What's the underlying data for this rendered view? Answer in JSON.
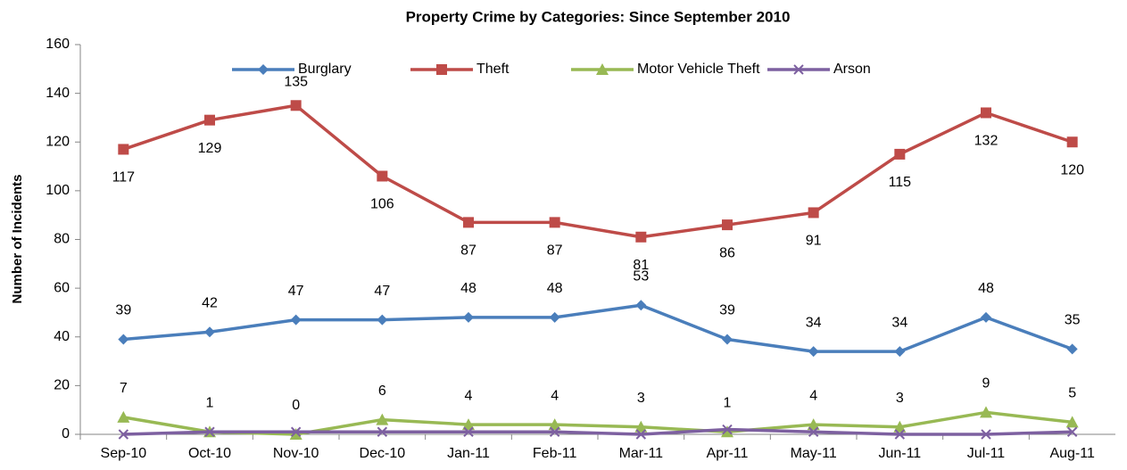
{
  "chart_data": {
    "type": "line",
    "title": "Property Crime by Categories: Since September 2010",
    "ylabel": "Number of Incidents",
    "categories": [
      "Sep-10",
      "Oct-10",
      "Nov-10",
      "Dec-10",
      "Jan-11",
      "Feb-11",
      "Mar-11",
      "Apr-11",
      "May-11",
      "Jun-11",
      "Jul-11",
      "Aug-11"
    ],
    "series": [
      {
        "name": "Burglary",
        "color": "#4a7ebb",
        "marker": "diamond",
        "data_labels": true,
        "values": [
          39,
          42,
          47,
          47,
          48,
          48,
          53,
          39,
          34,
          34,
          48,
          35
        ]
      },
      {
        "name": "Theft",
        "color": "#be4b48",
        "marker": "square",
        "data_labels": true,
        "values": [
          117,
          129,
          135,
          106,
          87,
          87,
          81,
          86,
          91,
          115,
          132,
          120
        ]
      },
      {
        "name": "Motor Vehicle Theft",
        "color": "#98b954",
        "marker": "triangle",
        "data_labels": true,
        "values": [
          7,
          1,
          0,
          6,
          4,
          4,
          3,
          1,
          4,
          3,
          9,
          5
        ]
      },
      {
        "name": "Arson",
        "color": "#7d60a0",
        "marker": "x",
        "data_labels": false,
        "values": [
          0,
          1,
          1,
          1,
          1,
          1,
          0,
          2,
          1,
          0,
          0,
          1
        ]
      }
    ],
    "ylim": [
      0,
      160
    ],
    "yticks": [
      0,
      20,
      40,
      60,
      80,
      100,
      120,
      140,
      160
    ],
    "grid": false,
    "legend": "top"
  }
}
